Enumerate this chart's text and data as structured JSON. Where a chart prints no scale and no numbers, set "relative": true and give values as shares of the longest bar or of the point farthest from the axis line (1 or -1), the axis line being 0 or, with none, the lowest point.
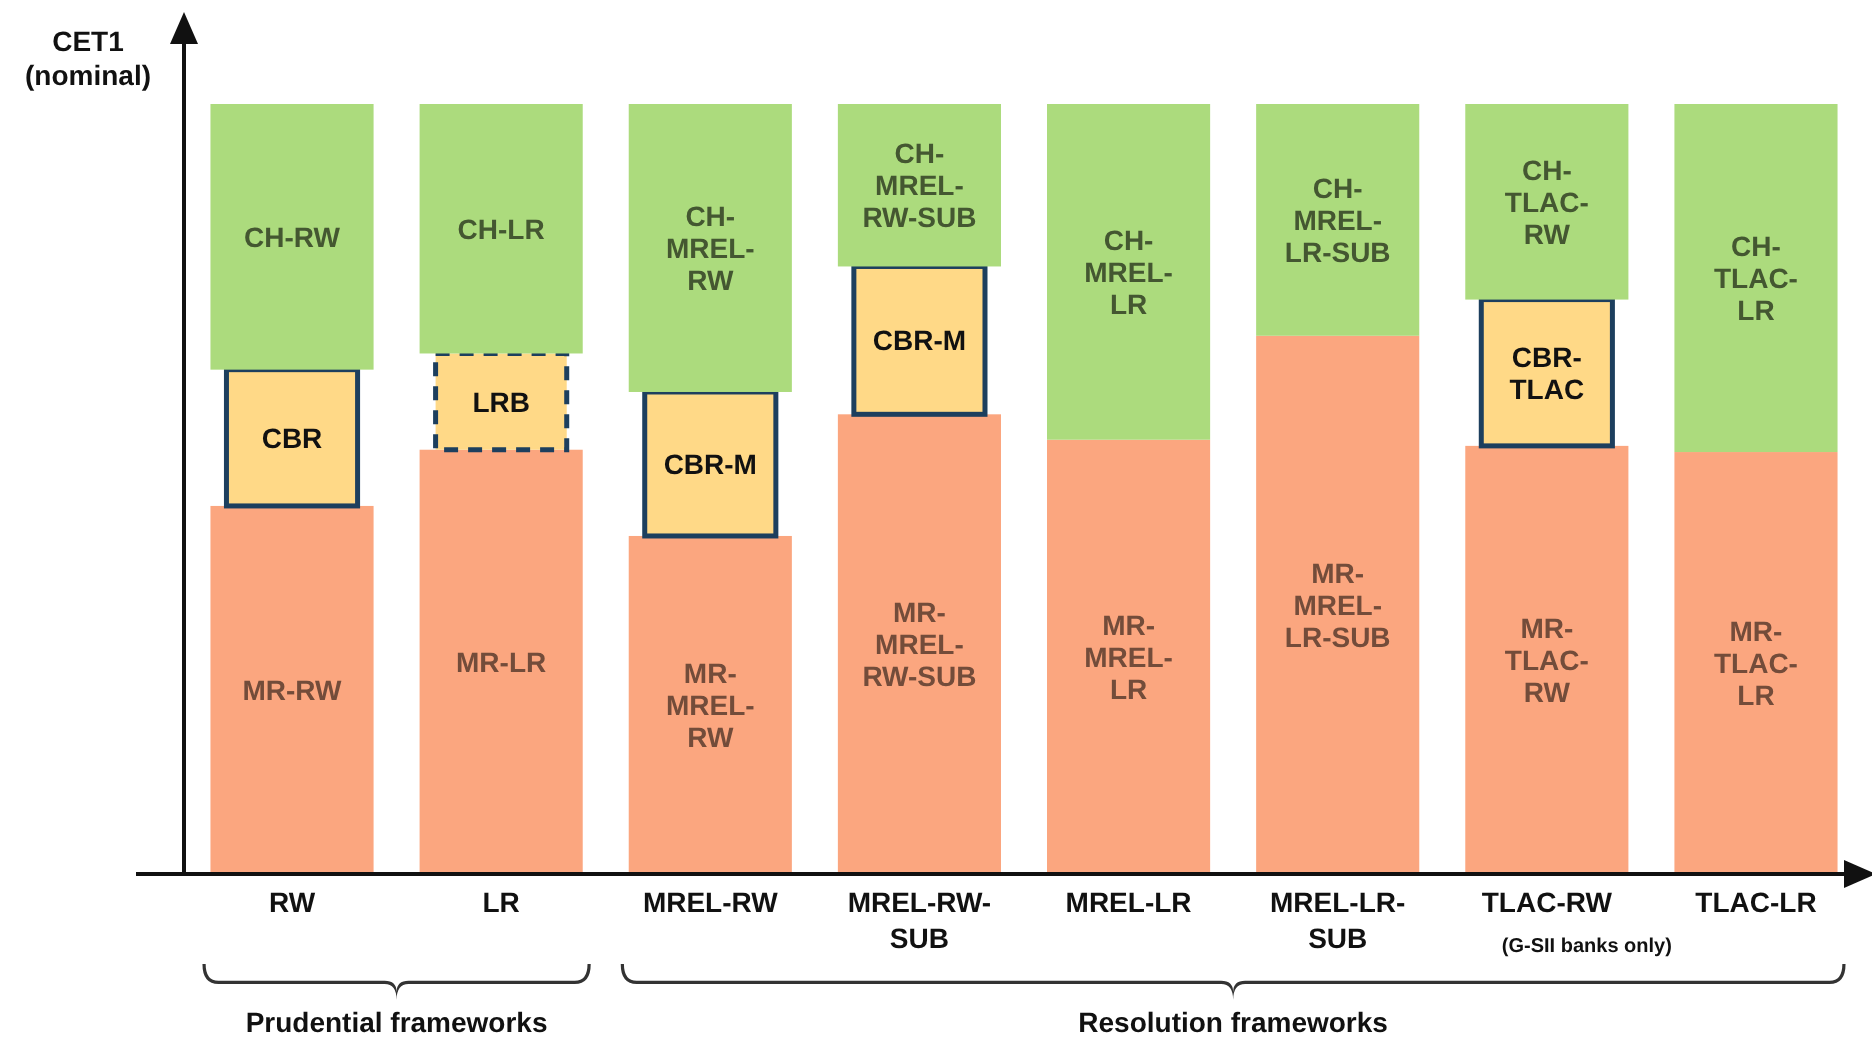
{
  "chart_data": {
    "type": "bar",
    "stacked": true,
    "relative": true,
    "ylabel": "CET1\n(nominal)",
    "categories": [
      "RW",
      "LR",
      "MREL-RW",
      "MREL-RW-\nSUB",
      "MREL-LR",
      "MREL-LR-\nSUB",
      "TLAC-RW",
      "TLAC-LR"
    ],
    "series": [
      {
        "color": "#fba67f",
        "values": [
          0.478,
          0.551,
          0.439,
          0.597,
          0.564,
          0.699,
          0.556,
          0.548
        ]
      },
      {
        "color": "#ffd987",
        "line_style": "solid",
        "values": [
          0.177,
          0,
          0.187,
          0.192,
          0,
          0,
          0.19,
          0
        ]
      },
      {
        "color": "#ffd987",
        "line_style": "dashed",
        "values": [
          0,
          0.125,
          0,
          0,
          0,
          0,
          0,
          0
        ]
      },
      {
        "color": "#acdb7d",
        "values": [
          0.345,
          0.324,
          0.374,
          0.211,
          0.436,
          0.301,
          0.254,
          0.452
        ]
      }
    ],
    "annotations": [
      "(G-SII banks only)",
      "Prudential frameworks",
      "Resolution frameworks",
      "MR-RW",
      "MR-LR",
      "MR-\nMREL-\nRW",
      "MR-\nMREL-\nRW-SUB",
      "MR-\nMREL-\nLR",
      "MR-\nMREL-\nLR-SUB",
      "MR-\nTLAC-\nRW",
      "MR-\nTLAC-\nLR",
      "CBR",
      "CBR-M",
      "CBR-M",
      "CBR-\nTLAC",
      "LRB",
      "CH-RW",
      "CH-LR",
      "CH-\nMREL-\nRW",
      "CH-\nMREL-\nRW-SUB",
      "CH-\nMREL-\nLR",
      "CH-\nMREL-\nLR-SUB",
      "CH-\nTLAC-\nRW",
      "CH-\nTLAC-\nLR"
    ]
  }
}
